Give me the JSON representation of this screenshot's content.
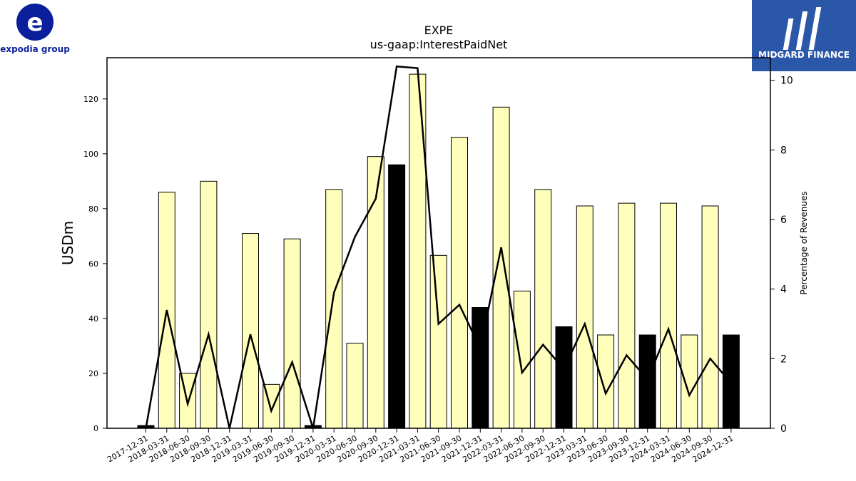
{
  "branding": {
    "company_logo_text": "expodia group",
    "company_logo_mark": "e",
    "publisher_logo_text": "MIDGARD FINANCE",
    "company_color": "#0b1f9c",
    "publisher_color": "#2b57a8"
  },
  "chart_data": {
    "type": "bar",
    "title": "EXPE",
    "subtitle": "us-gaap:InterestPaidNet",
    "ylabel": "USDm",
    "y2label": "Percentage of Revenues",
    "ylim": [
      0,
      135
    ],
    "y2lim": [
      0,
      10.65
    ],
    "yticks": [
      0,
      20,
      40,
      60,
      80,
      100,
      120
    ],
    "y2ticks": [
      0,
      2,
      4,
      6,
      8,
      10
    ],
    "categories": [
      "2017-12-31",
      "2018-03-31",
      "2018-06-30",
      "2018-09-30",
      "2018-12-31",
      "2019-03-31",
      "2019-06-30",
      "2019-09-30",
      "2019-12-31",
      "2020-03-31",
      "2020-06-30",
      "2020-09-30",
      "2020-12-31",
      "2021-03-31",
      "2021-06-30",
      "2021-09-30",
      "2021-12-31",
      "2022-03-31",
      "2022-06-30",
      "2022-09-30",
      "2022-12-31",
      "2023-03-31",
      "2023-06-30",
      "2023-09-30",
      "2023-12-31",
      "2024-03-31",
      "2024-06-30",
      "2024-09-30",
      "2024-12-31"
    ],
    "series": [
      {
        "values": [
          1,
          86,
          20,
          90,
          0,
          71,
          16,
          69,
          1,
          87,
          31,
          99,
          96,
          129,
          63,
          106,
          44,
          117,
          50,
          87,
          37,
          81,
          34,
          82,
          34,
          82,
          34,
          81,
          34
        ],
        "colors": [
          "#000000",
          "#ffffbb",
          "#ffffbb",
          "#ffffbb",
          "#000000",
          "#ffffbb",
          "#ffffbb",
          "#ffffbb",
          "#000000",
          "#ffffbb",
          "#ffffbb",
          "#ffffbb",
          "#000000",
          "#ffffbb",
          "#ffffbb",
          "#ffffbb",
          "#000000",
          "#ffffbb",
          "#ffffbb",
          "#ffffbb",
          "#000000",
          "#ffffbb",
          "#ffffbb",
          "#ffffbb",
          "#000000",
          "#ffffbb",
          "#ffffbb",
          "#ffffbb",
          "#000000"
        ]
      },
      {
        "type": "line",
        "axis": "right",
        "color": "#000000",
        "values": [
          0,
          3.4,
          0.7,
          2.7,
          0,
          2.7,
          0.5,
          1.9,
          0,
          3.9,
          5.5,
          6.6,
          10.4,
          10.35,
          3.0,
          3.55,
          2.3,
          5.2,
          1.6,
          2.4,
          1.7,
          3.0,
          1.0,
          2.1,
          1.4,
          2.85,
          0.95,
          2.0,
          1.3
        ]
      }
    ],
    "grid": false,
    "legend": "none"
  }
}
